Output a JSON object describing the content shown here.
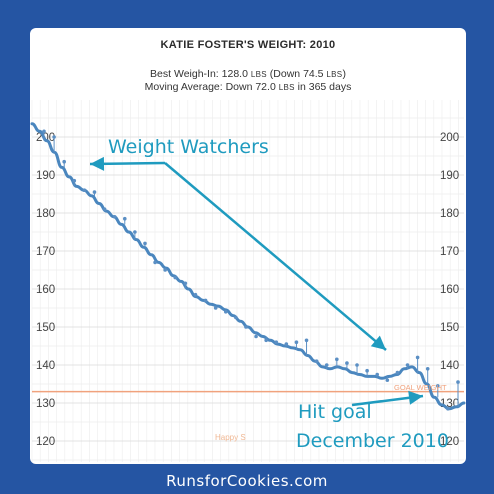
{
  "header": {
    "title": "KATIE FOSTER'S WEIGHT: 2010",
    "best_label": "Best Weigh-In: ",
    "best_value": "128.0",
    "best_unit": "LBS",
    "best_paren_open": " (Down ",
    "best_down": "74.5",
    "best_paren_close": ")",
    "ma_label": "Moving Average: Down ",
    "ma_value": "72.0",
    "ma_unit": "LBS",
    "ma_suffix": " in 365 days"
  },
  "annotations": {
    "weight_watchers": "Weight Watchers",
    "hit_goal_line1": "Hit goal",
    "hit_goal_line2": "December 2010",
    "goal_weight_label": "GOAL WEIGHT",
    "happy_label": "Happy S"
  },
  "footer": {
    "brand": "RunsforCookies.com"
  },
  "colors": {
    "background": "#2555a3",
    "line": "#4a86be",
    "points": "#5b8fc4",
    "goal_line": "#f0a27d",
    "annotation": "#1f9bbf"
  },
  "chart_data": {
    "type": "line",
    "title": "KATIE FOSTER'S WEIGHT: 2010",
    "ylim": [
      115,
      205
    ],
    "y_ticks": [
      120,
      130,
      140,
      150,
      160,
      170,
      180,
      190,
      200
    ],
    "grid": true,
    "goal_weight": 133,
    "series": [
      {
        "values": [
          203.5,
          201.5,
          199,
          196,
          192,
          189.5,
          187,
          186,
          184.5,
          182.5,
          180.5,
          179,
          177,
          175,
          173,
          171,
          169,
          167,
          165.5,
          163.5,
          162,
          160,
          158,
          157,
          156,
          155.5,
          154.5,
          153,
          151.5,
          150,
          148.5,
          147.5,
          146.5,
          145.5,
          145,
          144.5,
          144,
          142.5,
          141,
          139.5,
          139,
          139.5,
          139,
          138,
          137.5,
          137,
          137,
          136.5,
          137,
          137.5,
          139,
          139.5,
          138,
          135,
          131.5,
          129.5,
          128.5,
          129,
          130
        ]
      },
      {
        "values": [
          201.5,
          200,
          193.5,
          188.5,
          186,
          185.5,
          181,
          179,
          178.5,
          175,
          172,
          167,
          165,
          163,
          161.5,
          158.5,
          157,
          155,
          154,
          152.5,
          150,
          147.5,
          146.5,
          146,
          145.5,
          146,
          146.5,
          141,
          140,
          141.5,
          140.5,
          140,
          138.5,
          137.5,
          136,
          138,
          140,
          142,
          139,
          134.5,
          128.5,
          135.5
        ]
      }
    ]
  }
}
